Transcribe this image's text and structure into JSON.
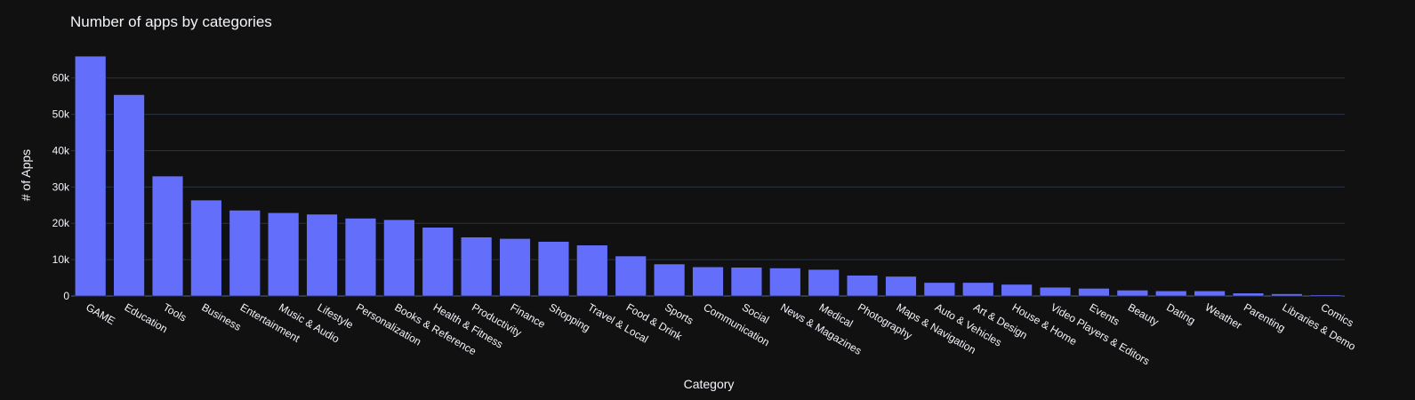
{
  "chart_data": {
    "type": "bar",
    "title": "Number of apps by categories",
    "xlabel": "Category",
    "ylabel": "# of Apps",
    "ylim": [
      0,
      68000
    ],
    "y_ticks": [
      0,
      10000,
      20000,
      30000,
      40000,
      50000,
      60000
    ],
    "y_tick_labels": [
      "0",
      "10k",
      "20k",
      "30k",
      "40k",
      "50k",
      "60k"
    ],
    "grid": true,
    "colors": {
      "background": "#111111",
      "bar": "#636efa",
      "grid": "#283442",
      "text": "#f2f5fa"
    },
    "categories": [
      "GAME",
      "Education",
      "Tools",
      "Business",
      "Entertainment",
      "Music & Audio",
      "Lifestyle",
      "Personalization",
      "Books & Reference",
      "Health & Fitness",
      "Productivity",
      "Finance",
      "Shopping",
      "Travel & Local",
      "Food & Drink",
      "Sports",
      "Communication",
      "Social",
      "News & Magazines",
      "Medical",
      "Photography",
      "Maps & Navigation",
      "Auto & Vehicles",
      "Art & Design",
      "House & Home",
      "Video Players & Editors",
      "Events",
      "Beauty",
      "Dating",
      "Weather",
      "Parenting",
      "Libraries & Demo",
      "Comics"
    ],
    "values": [
      66000,
      55400,
      33000,
      26400,
      23600,
      22900,
      22500,
      21400,
      21000,
      18900,
      16200,
      15800,
      15000,
      14000,
      11000,
      8800,
      8000,
      7900,
      7700,
      7300,
      5700,
      5400,
      3700,
      3700,
      3200,
      2400,
      2100,
      1600,
      1400,
      1400,
      800,
      600,
      300
    ]
  }
}
